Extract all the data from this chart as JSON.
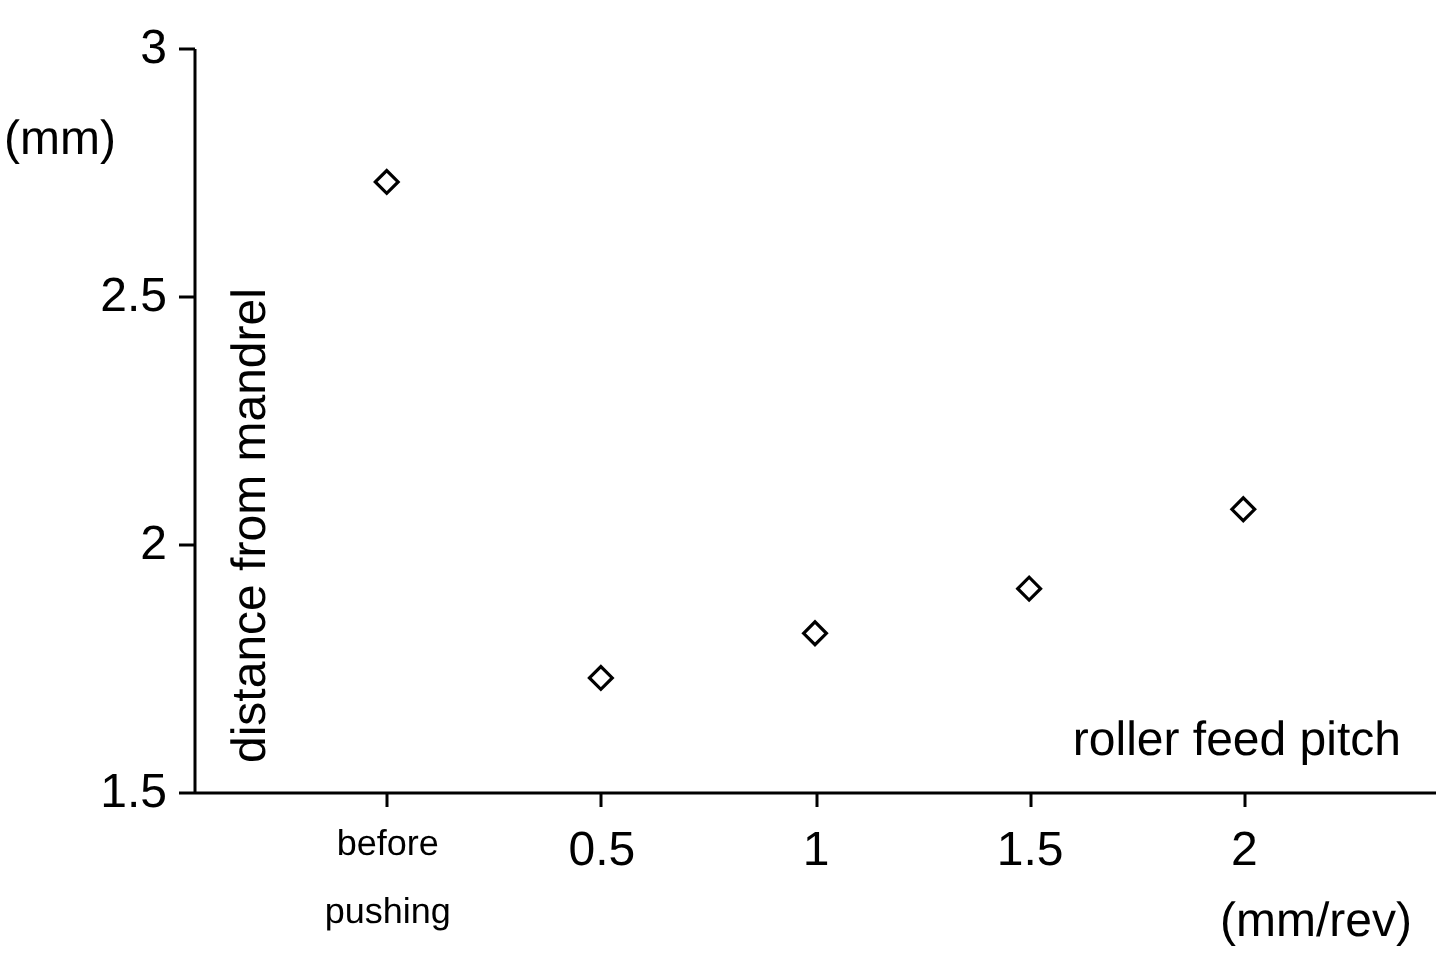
{
  "chart_data": {
    "type": "scatter",
    "xlabel": "roller feed pitch",
    "ylabel": "distance from mandrel",
    "annotations": [
      "(mm)",
      "(mm/rev)"
    ],
    "categories": [
      "before pushing",
      "0.5",
      "1",
      "1.5",
      "2"
    ],
    "values": [
      2.73,
      1.73,
      1.82,
      1.91,
      2.07
    ],
    "color": "#000000",
    "marker": "diamond",
    "ylim": [
      1.5,
      3
    ],
    "yticks": [
      1.5,
      2,
      2.5,
      3
    ],
    "grid": false
  }
}
